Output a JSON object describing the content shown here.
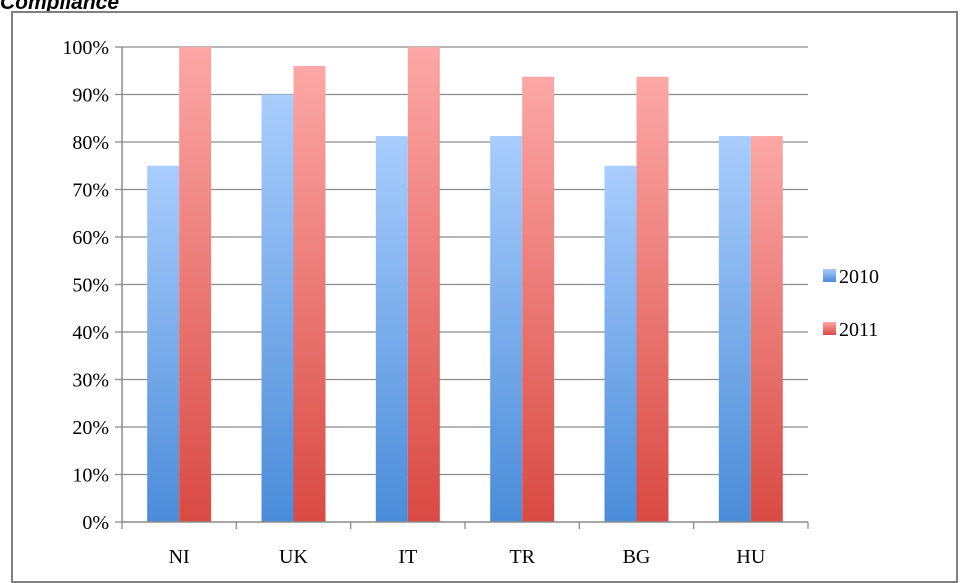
{
  "chart_data": {
    "type": "bar",
    "title": "Compliance",
    "categories": [
      "NI",
      "UK",
      "IT",
      "TR",
      "BG",
      "HU"
    ],
    "series": [
      {
        "name": "2010",
        "values": [
          75,
          90,
          81.25,
          81.25,
          75,
          81.25
        ],
        "color_top": "#a9cdfd",
        "color_bottom": "#4a8cd9"
      },
      {
        "name": "2011",
        "values": [
          100,
          96,
          100,
          93.75,
          93.75,
          81.25
        ],
        "color_top": "#fca8a6",
        "color_bottom": "#d94a43"
      }
    ],
    "yticks": [
      "0%",
      "10%",
      "20%",
      "30%",
      "40%",
      "50%",
      "60%",
      "70%",
      "80%",
      "90%",
      "100%"
    ],
    "ylim": [
      0,
      100
    ],
    "y_unit": "%",
    "grid": true,
    "legend_position": "right"
  }
}
